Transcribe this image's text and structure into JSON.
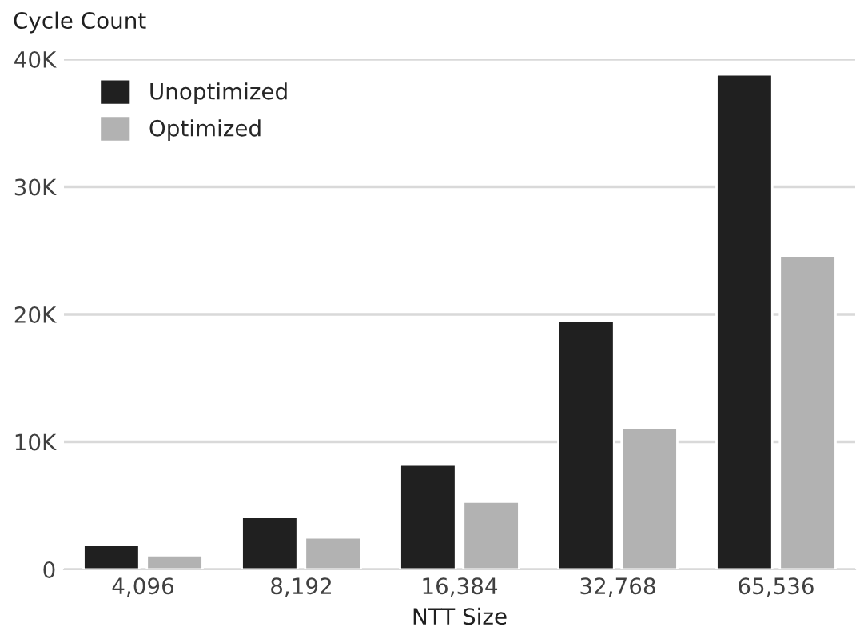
{
  "chart_data": {
    "type": "bar",
    "ylabel": "Cycle Count",
    "xlabel": "NTT Size",
    "categories": [
      "4,096",
      "8,192",
      "16,384",
      "32,768",
      "65,536"
    ],
    "series": [
      {
        "name": "Unoptimized",
        "color": "#202020",
        "values": [
          1900,
          4100,
          8200,
          19500,
          38800
        ]
      },
      {
        "name": "Optimized",
        "color": "#b2b2b2",
        "values": [
          1100,
          2500,
          5300,
          11100,
          24600
        ]
      }
    ],
    "ylim": [
      0,
      40000
    ],
    "yticks": [
      0,
      {
        "value": 10000,
        "label": "10K"
      },
      {
        "value": 20000,
        "label": "20K"
      },
      {
        "value": 30000,
        "label": "30K"
      },
      {
        "value": 40000,
        "label": "40K"
      }
    ],
    "grid": "y",
    "legend": "top left"
  }
}
